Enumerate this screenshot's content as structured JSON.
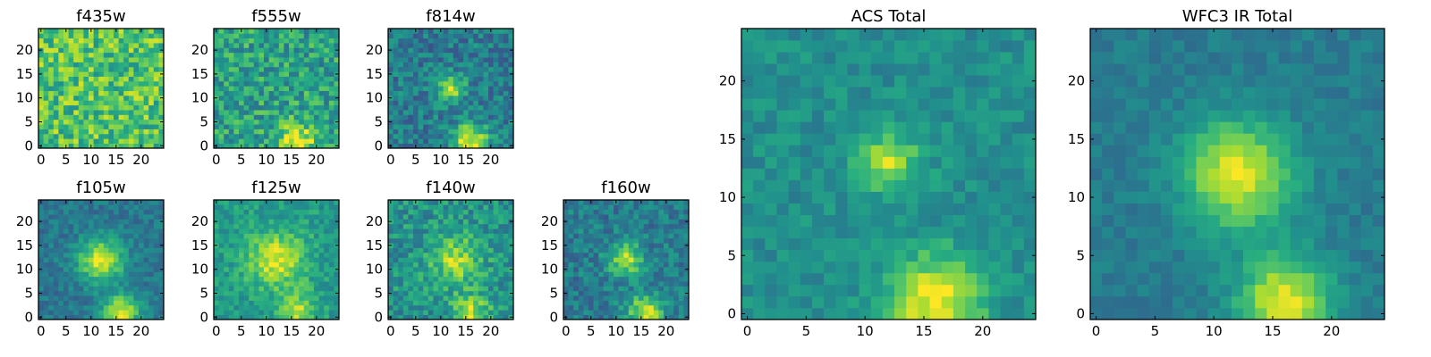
{
  "figure": {
    "colormap": "viridis",
    "colors": {
      "viridis_low": "#440154",
      "viridis_mid": "#21918c",
      "viridis_high": "#fde725",
      "frame": "#000000",
      "background": "#ffffff"
    }
  },
  "chart_data": [
    {
      "type": "heatmap",
      "title": "f435w",
      "grid_size": 25,
      "xticks": [
        0,
        5,
        10,
        15,
        20
      ],
      "yticks": [
        0,
        5,
        10,
        15,
        20
      ],
      "xlim": [
        0,
        25
      ],
      "ylim": [
        0,
        25
      ],
      "noise": 0.22,
      "base": 0.72,
      "features": [
        {
          "label": "compact source",
          "x": 12,
          "y": 12,
          "amp": 0.0,
          "sigma": 2
        }
      ],
      "seed": 11
    },
    {
      "type": "heatmap",
      "title": "f555w",
      "grid_size": 25,
      "xticks": [
        0,
        5,
        10,
        15,
        20
      ],
      "yticks": [
        0,
        5,
        10,
        15,
        20
      ],
      "xlim": [
        0,
        25
      ],
      "ylim": [
        0,
        25
      ],
      "noise": 0.2,
      "base": 0.58,
      "features": [
        {
          "label": "lower source",
          "x": 16,
          "y": 1,
          "amp": 0.45,
          "sigma": 2.5
        }
      ],
      "seed": 23
    },
    {
      "type": "heatmap",
      "title": "f814w",
      "grid_size": 25,
      "xticks": [
        0,
        5,
        10,
        15,
        20
      ],
      "yticks": [
        0,
        5,
        10,
        15,
        20
      ],
      "xlim": [
        0,
        25
      ],
      "ylim": [
        0,
        25
      ],
      "noise": 0.16,
      "base": 0.42,
      "features": [
        {
          "label": "central source",
          "x": 12,
          "y": 12,
          "amp": 0.45,
          "sigma": 2
        },
        {
          "label": "lower source",
          "x": 16,
          "y": 1,
          "amp": 0.55,
          "sigma": 2.6
        }
      ],
      "seed": 37
    },
    {
      "type": "heatmap",
      "title": "f105w",
      "grid_size": 25,
      "xticks": [
        0,
        5,
        10,
        15,
        20
      ],
      "yticks": [
        0,
        5,
        10,
        15,
        20
      ],
      "xlim": [
        0,
        25
      ],
      "ylim": [
        0,
        25
      ],
      "noise": 0.1,
      "base": 0.4,
      "features": [
        {
          "label": "central source",
          "x": 12,
          "y": 12,
          "amp": 0.55,
          "sigma": 3.2
        },
        {
          "label": "lower source",
          "x": 16,
          "y": 1,
          "amp": 0.55,
          "sigma": 2.6
        }
      ],
      "seed": 41
    },
    {
      "type": "heatmap",
      "title": "f125w",
      "grid_size": 25,
      "xticks": [
        0,
        5,
        10,
        15,
        20
      ],
      "yticks": [
        0,
        5,
        10,
        15,
        20
      ],
      "xlim": [
        0,
        25
      ],
      "ylim": [
        0,
        25
      ],
      "noise": 0.12,
      "base": 0.55,
      "features": [
        {
          "label": "central source",
          "x": 12,
          "y": 12,
          "amp": 0.4,
          "sigma": 4
        },
        {
          "label": "lower source",
          "x": 16,
          "y": 1,
          "amp": 0.35,
          "sigma": 2.6
        }
      ],
      "seed": 53
    },
    {
      "type": "heatmap",
      "title": "f140w",
      "grid_size": 25,
      "xticks": [
        0,
        5,
        10,
        15,
        20
      ],
      "yticks": [
        0,
        5,
        10,
        15,
        20
      ],
      "xlim": [
        0,
        25
      ],
      "ylim": [
        0,
        25
      ],
      "noise": 0.16,
      "base": 0.52,
      "features": [
        {
          "label": "central source",
          "x": 13,
          "y": 12,
          "amp": 0.35,
          "sigma": 3.5
        },
        {
          "label": "lower source",
          "x": 16,
          "y": 1,
          "amp": 0.35,
          "sigma": 2.6
        }
      ],
      "seed": 67
    },
    {
      "type": "heatmap",
      "title": "f160w",
      "grid_size": 25,
      "xticks": [
        0,
        5,
        10,
        15,
        20
      ],
      "yticks": [
        0,
        5,
        10,
        15,
        20
      ],
      "xlim": [
        0,
        25
      ],
      "ylim": [
        0,
        25
      ],
      "noise": 0.14,
      "base": 0.42,
      "features": [
        {
          "label": "central source",
          "x": 12,
          "y": 12,
          "amp": 0.45,
          "sigma": 2.5
        },
        {
          "label": "lower source",
          "x": 16,
          "y": 1,
          "amp": 0.5,
          "sigma": 2.6
        }
      ],
      "seed": 79
    },
    {
      "type": "heatmap",
      "title": "ACS Total",
      "grid_size": 25,
      "xticks": [
        0,
        5,
        10,
        15,
        20
      ],
      "yticks": [
        0,
        5,
        10,
        15,
        20
      ],
      "xlim": [
        0,
        25
      ],
      "ylim": [
        0,
        25
      ],
      "noise": 0.09,
      "base": 0.5,
      "features": [
        {
          "label": "central source",
          "x": 12,
          "y": 13,
          "amp": 0.4,
          "sigma": 1.8
        },
        {
          "label": "lower source",
          "x": 16,
          "y": 1,
          "amp": 0.5,
          "sigma": 2.8
        }
      ],
      "seed": 83
    },
    {
      "type": "heatmap",
      "title": "WFC3 IR Total",
      "grid_size": 25,
      "xticks": [
        0,
        5,
        10,
        15,
        20
      ],
      "yticks": [
        0,
        5,
        10,
        15,
        20
      ],
      "xlim": [
        0,
        25
      ],
      "ylim": [
        0,
        25
      ],
      "noise": 0.06,
      "base": 0.42,
      "features": [
        {
          "label": "central source",
          "x": 12,
          "y": 12,
          "amp": 0.55,
          "sigma": 3.2
        },
        {
          "label": "lower source",
          "x": 16,
          "y": 1,
          "amp": 0.55,
          "sigma": 2.8
        }
      ],
      "seed": 97
    }
  ]
}
